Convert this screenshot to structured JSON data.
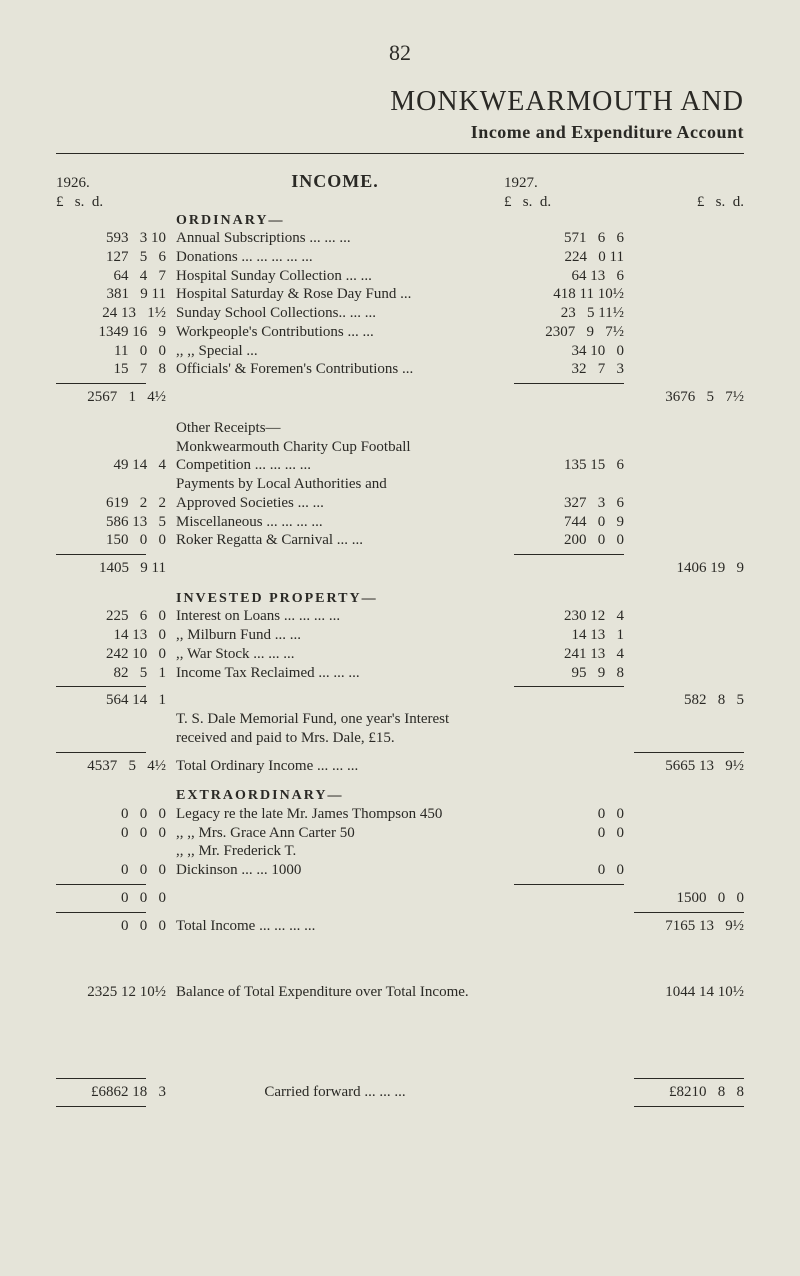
{
  "page_number": "82",
  "title": "MONKWEARMOUTH AND",
  "subtitle": "Income and Expenditure Account",
  "header_row": {
    "left_year": "1926.",
    "left_lsd": "£   s.  d.",
    "center": "INCOME.",
    "right_year": "1927.",
    "right_lsd": "£   s.  d.",
    "far_lsd": "£   s.  d."
  },
  "ordinary_label": "ORDINARY—",
  "ordinary": [
    {
      "l": "593   3 10",
      "d": "Annual Subscriptions   ...   ...   ...",
      "r": "571   6   6"
    },
    {
      "l": "127   5   6",
      "d": "Donations   ...   ...   ...   ...   ...",
      "r": "224   0 11"
    },
    {
      "l": "64   4   7",
      "d": "Hospital Sunday Collection   ...   ...",
      "r": "64 13   6"
    },
    {
      "l": "381   9 11",
      "d": "Hospital Saturday & Rose Day Fund ...",
      "r": "418 11 10½"
    },
    {
      "l": "24 13   1½",
      "d": "Sunday School Collections..   ...   ...",
      "r": "23   5 11½"
    },
    {
      "l": "1349 16   9",
      "d": "Workpeople's Contributions   ...   ...",
      "r": "2307   9   7½"
    },
    {
      "l": "11   0   0",
      "d": "          ,,                    ,,           Special   ...",
      "r": "34 10   0"
    },
    {
      "l": "15   7   8",
      "d": "Officials' & Foremen's Contributions   ...",
      "r": "32   7   3"
    }
  ],
  "ordinary_totals": {
    "l": "2567   1   4½",
    "far": "3676   5   7½"
  },
  "other_receipts_label": "Other Receipts—",
  "other": [
    {
      "l": "",
      "d": "Monkwearmouth Charity Cup Football",
      "r": ""
    },
    {
      "l": "49 14   4",
      "d": "   Competition ...   ...   ...   ...",
      "r": "135 15   6"
    },
    {
      "l": "",
      "d": "Payments by Local Authorities and",
      "r": ""
    },
    {
      "l": "619   2   2",
      "d": "   Approved Societies   ...   ...",
      "r": "327   3   6"
    },
    {
      "l": "586 13   5",
      "d": "Miscellaneous   ...   ...   ...   ...",
      "r": "744   0   9"
    },
    {
      "l": "150   0   0",
      "d": "Roker Regatta & Carnival   ...   ...",
      "r": "200   0   0"
    }
  ],
  "other_totals": {
    "l": "1405   9 11",
    "far": "1406 19   9"
  },
  "invested_label": "INVESTED PROPERTY—",
  "invested": [
    {
      "l": "225   6   0",
      "d": "Interest on Loans ...   ...   ...   ...",
      "r": "230 12   4"
    },
    {
      "l": "14 13   0",
      "d": "     ,,        Milburn Fund   ...   ...",
      "r": "14 13   1"
    },
    {
      "l": "242 10   0",
      "d": "     ,,        War Stock   ...   ...   ...",
      "r": "241 13   4"
    },
    {
      "l": "82   5   1",
      "d": "Income Tax Reclaimed   ...   ...   ...",
      "r": "95   9   8"
    }
  ],
  "invested_totals": {
    "l": "564 14   1",
    "far": "582   8   5"
  },
  "dale_note1": "T. S. Dale Memorial Fund, one year's Interest",
  "dale_note2": "received and paid to Mrs. Dale, £15.",
  "ordinary_income_total": {
    "l": "4537   5   4½",
    "d": "Total Ordinary Income   ...   ...   ...",
    "far": "5665 13   9½"
  },
  "extra_label": "EXTRAORDINARY—",
  "extra": [
    {
      "l": "0   0   0",
      "d": "Legacy re the late Mr. James Thompson  450",
      "r": "0   0"
    },
    {
      "l": "0   0   0",
      "d": "     ,,        ,,      Mrs. Grace Ann Carter   50",
      "r": "0   0"
    },
    {
      "l": "",
      "d": "     ,,        ,,      Mr. Frederick T.",
      "r": ""
    },
    {
      "l": "0   0   0",
      "d": "                          Dickinson ...   ... 1000",
      "r": "0   0"
    }
  ],
  "extra_sub": {
    "l": "0   0   0",
    "far": "1500   0   0"
  },
  "extra_total": {
    "l": "0   0   0",
    "d": "Total Income   ...   ...   ...   ...",
    "far": "7165 13   9½"
  },
  "balance": {
    "l": "2325 12 10½",
    "d": "Balance of Total Expenditure over Total Income.",
    "far": "1044 14 10½"
  },
  "footer": {
    "l": "£6862 18   3",
    "d": "Carried forward   ...   ...   ...",
    "far": "£8210   8   8"
  }
}
